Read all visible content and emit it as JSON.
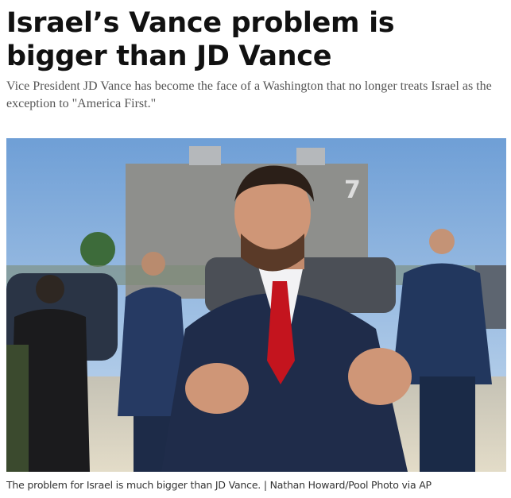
{
  "header": {
    "title": "Israel’s Vance problem is bigger than JD Vance",
    "subtitle": "Vice President JD Vance has become the face of a Washington that no longer treats Israel as the exception to \"America First.\""
  },
  "photo": {
    "building_number": "7",
    "caption": "The problem for Israel is much bigger than JD Vance. | Nathan Howard/Pool Photo via AP"
  }
}
